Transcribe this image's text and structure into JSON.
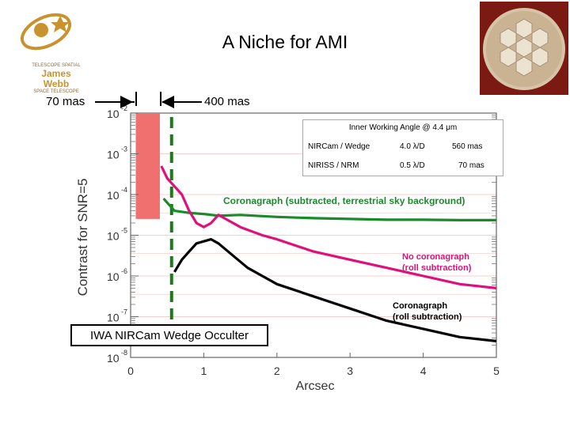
{
  "page": {
    "title": "A Niche for AMI"
  },
  "logo": {
    "lines": [
      "TELESCOPE SPATIAL",
      "James Webb",
      "SPACE TELESCOPE"
    ]
  },
  "notes": {
    "left": "70 mas",
    "right": "400 mas"
  },
  "iwa_label": "IWA NIRCam Wedge Occulter",
  "info_table": {
    "title": "Inner Working Angle @ 4.4 μm",
    "rows": [
      {
        "instrument": "NIRCam / Wedge",
        "lambda": "4.0 λ/D",
        "mas": "560 mas"
      },
      {
        "instrument": "NIRISS / NRM",
        "lambda": "0.5 λ/D",
        "mas": "70 mas"
      }
    ]
  },
  "colors": {
    "green": "#1a8a2b",
    "magenta": "#e0107a",
    "black": "#000000",
    "pink_box": "#f07070",
    "dashed_green": "#1b7a1b"
  },
  "chart_data": {
    "type": "line",
    "title": "",
    "xlabel": "Arcsec",
    "ylabel": "Contrast for SNR=5",
    "xlim": [
      0,
      5
    ],
    "ylim_exp": [
      -8,
      -2
    ],
    "x_ticks": [
      "0",
      "1",
      "2",
      "3",
      "4",
      "5"
    ],
    "y_ticks": [
      {
        "base": "10",
        "exp": "-2"
      },
      {
        "base": "10",
        "exp": "-3"
      },
      {
        "base": "10",
        "exp": "-4"
      },
      {
        "base": "10",
        "exp": "-5"
      },
      {
        "base": "10",
        "exp": "-6"
      },
      {
        "base": "10",
        "exp": "-7"
      },
      {
        "base": "10",
        "exp": "-8"
      }
    ],
    "shaded_region": {
      "x_start": 0.07,
      "x_end": 0.4,
      "y_top_exp": -2,
      "y_bottom_exp": -4.6
    },
    "iwa_line_x": 0.56,
    "series": [
      {
        "name": "Coronagraph (subtracted, terrestrial sky background)",
        "color": "#1a8a2b",
        "x": [
          0.45,
          0.6,
          0.8,
          1.0,
          1.2,
          1.5,
          2.0,
          2.5,
          3.0,
          3.5,
          4.0,
          4.5,
          5.0
        ],
        "y": [
          -4.1,
          -4.4,
          -4.45,
          -4.48,
          -4.52,
          -4.5,
          -4.55,
          -4.58,
          -4.6,
          -4.62,
          -4.62,
          -4.63,
          -4.63
        ]
      },
      {
        "name": "No coronagraph (roll subtraction)",
        "color": "#e0107a",
        "x": [
          0.42,
          0.5,
          0.6,
          0.7,
          0.8,
          0.9,
          1.0,
          1.1,
          1.2,
          1.3,
          1.5,
          1.8,
          2.0,
          2.5,
          3.0,
          3.5,
          4.0,
          4.5,
          5.0
        ],
        "y": [
          -3.3,
          -3.6,
          -3.8,
          -4.0,
          -4.4,
          -4.7,
          -4.8,
          -4.7,
          -4.5,
          -4.6,
          -4.8,
          -5.0,
          -5.1,
          -5.4,
          -5.6,
          -5.8,
          -6.0,
          -6.2,
          -6.3
        ]
      },
      {
        "name": "Coronagraph (roll subtraction)",
        "color": "#000000",
        "x": [
          0.6,
          0.7,
          0.8,
          0.9,
          1.0,
          1.1,
          1.2,
          1.4,
          1.6,
          1.8,
          2.0,
          2.5,
          3.0,
          3.5,
          4.0,
          4.5,
          5.0
        ],
        "y": [
          -5.9,
          -5.6,
          -5.4,
          -5.2,
          -5.15,
          -5.1,
          -5.2,
          -5.5,
          -5.8,
          -6.0,
          -6.2,
          -6.5,
          -6.8,
          -7.1,
          -7.3,
          -7.5,
          -7.6
        ]
      }
    ],
    "annotations": [
      {
        "text": "Coronagraph (subtracted, terrestrial sky background)",
        "color": "#1a8a2b"
      },
      {
        "text": "No coronagraph",
        "color": "#e0107a"
      },
      {
        "text": "(roll subtraction)",
        "color": "#e0107a"
      },
      {
        "text": "Coronagraph",
        "color": "#000000"
      },
      {
        "text": "(roll subtraction)",
        "color": "#000000"
      }
    ]
  }
}
